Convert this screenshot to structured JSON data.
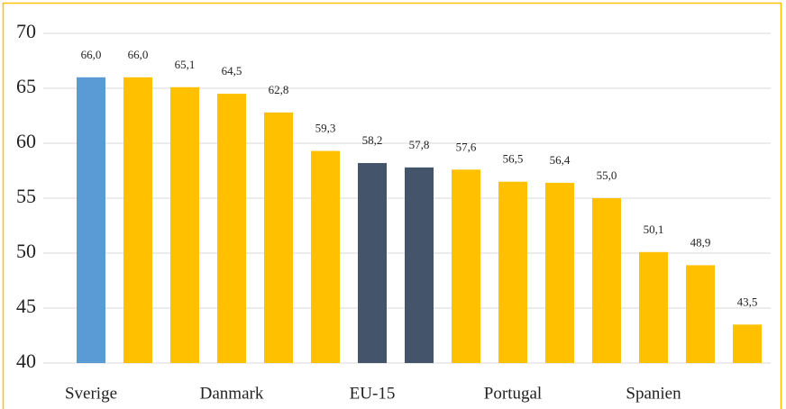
{
  "chart_data": {
    "type": "bar",
    "categories": [
      "Sverige",
      null,
      null,
      "Danmark",
      null,
      null,
      "EU-15",
      null,
      null,
      "Portugal",
      null,
      null,
      "Spanien",
      null,
      null
    ],
    "values": [
      66.0,
      66.0,
      65.1,
      64.5,
      62.8,
      59.3,
      58.2,
      57.8,
      57.6,
      56.5,
      56.4,
      55.0,
      50.1,
      48.9,
      43.5
    ],
    "value_labels": [
      "66,0",
      "66,0",
      "65,1",
      "64,5",
      "62,8",
      "59,3",
      "58,2",
      "57,8",
      "57,6",
      "56,5",
      "56,4",
      "55,0",
      "50,1",
      "48,9",
      "43,5"
    ],
    "colors": [
      "#5b9bd5",
      "#ffc000",
      "#ffc000",
      "#ffc000",
      "#ffc000",
      "#ffc000",
      "#44546a",
      "#44546a",
      "#ffc000",
      "#ffc000",
      "#ffc000",
      "#ffc000",
      "#ffc000",
      "#ffc000",
      "#ffc000"
    ],
    "ylim": [
      40,
      70
    ],
    "yticks": [
      40,
      45,
      50,
      55,
      60,
      65,
      70
    ],
    "grid": true
  }
}
